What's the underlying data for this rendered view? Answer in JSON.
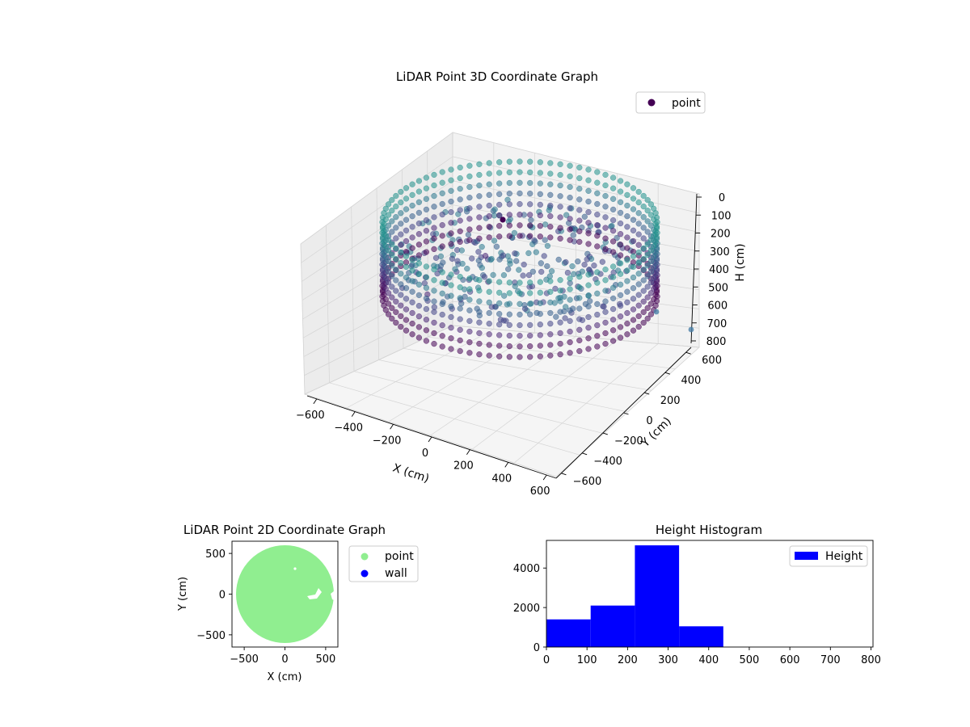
{
  "chart_data": [
    {
      "type": "scatter",
      "projection": "3d",
      "title": "LiDAR Point 3D Coordinate Graph",
      "xlabel": "X (cm)",
      "ylabel": "Y (cm)",
      "zlabel": "H (cm)",
      "xlim": [
        -650,
        650
      ],
      "ylim": [
        -650,
        650
      ],
      "zlim": [
        800,
        0
      ],
      "z_axis_inverted": true,
      "x_ticks": [
        -600,
        -400,
        -200,
        0,
        200,
        400,
        600
      ],
      "y_ticks": [
        -600,
        -400,
        -200,
        0,
        200,
        400,
        600
      ],
      "z_ticks": [
        0,
        100,
        200,
        300,
        400,
        500,
        600,
        700,
        800
      ],
      "grid": true,
      "legend": {
        "position": "top-right",
        "entries": [
          "point"
        ]
      },
      "series": [
        {
          "name": "point",
          "color": "#440154",
          "colormap": "viridis",
          "description": "cylindrical wall of points at radius ~600 cm spanning H 0-800 cm plus interior floor/ceiling clusters",
          "wall_radius": 600,
          "h_range": [
            0,
            800
          ]
        }
      ]
    },
    {
      "type": "scatter",
      "title": "LiDAR Point 2D Coordinate Graph",
      "xlabel": "X (cm)",
      "ylabel": "Y (cm)",
      "xlim": [
        -650,
        650
      ],
      "ylim": [
        -650,
        650
      ],
      "x_ticks": [
        -500,
        0,
        500
      ],
      "y_ticks": [
        -500,
        0,
        500
      ],
      "legend": {
        "position": "right-outside",
        "entries": [
          "point",
          "wall"
        ]
      },
      "series": [
        {
          "name": "point",
          "color": "#90ee90",
          "shape": "disc",
          "radius": 600
        },
        {
          "name": "wall",
          "color": "#0000ff",
          "values": []
        }
      ]
    },
    {
      "type": "bar",
      "subtype": "histogram",
      "title": "Height Histogram",
      "xlabel": "",
      "ylabel": "",
      "xlim": [
        0,
        805
      ],
      "ylim": [
        0,
        5400
      ],
      "x_ticks": [
        0,
        100,
        200,
        300,
        400,
        500,
        600,
        700,
        800
      ],
      "y_ticks": [
        0,
        2000,
        4000
      ],
      "bin_edges": [
        0,
        109,
        218,
        327,
        436,
        545,
        654,
        763
      ],
      "values": [
        1400,
        2100,
        5150,
        1050,
        0,
        0,
        0
      ],
      "legend": {
        "position": "top-right",
        "entries": [
          "Height"
        ]
      },
      "series": [
        {
          "name": "Height",
          "color": "#0000ff"
        }
      ]
    }
  ]
}
